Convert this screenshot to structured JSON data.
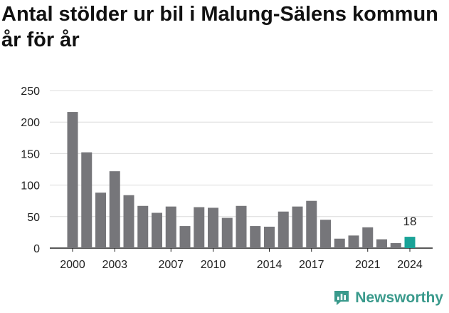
{
  "title": "Antal stölder ur bil i Malung-Sälens kommun år för år",
  "brand": {
    "name": "Newsworthy",
    "color": "#3a9a8c"
  },
  "colors": {
    "bar": "#76767a",
    "highlight": "#1aa398",
    "grid": "#dcdcdc",
    "axis": "#222222",
    "text": "#222222"
  },
  "chart_data": {
    "type": "bar",
    "title": "Antal stölder ur bil i Malung-Sälens kommun år för år",
    "xlabel": "",
    "ylabel": "",
    "x": [
      2000,
      2001,
      2002,
      2003,
      2004,
      2005,
      2006,
      2007,
      2008,
      2009,
      2010,
      2011,
      2012,
      2013,
      2014,
      2015,
      2016,
      2017,
      2018,
      2019,
      2020,
      2021,
      2022,
      2023,
      2024
    ],
    "values": [
      216,
      152,
      88,
      122,
      84,
      67,
      56,
      66,
      35,
      65,
      64,
      48,
      67,
      35,
      34,
      58,
      66,
      75,
      45,
      15,
      20,
      33,
      14,
      8,
      18
    ],
    "x_tick_labels": [
      "2000",
      "2003",
      "2007",
      "2010",
      "2014",
      "2017",
      "2021",
      "2024"
    ],
    "y_ticks": [
      0,
      50,
      100,
      150,
      200,
      250
    ],
    "ylim": [
      0,
      250
    ],
    "grid": true,
    "highlight": {
      "year": 2024,
      "label": "18"
    }
  }
}
